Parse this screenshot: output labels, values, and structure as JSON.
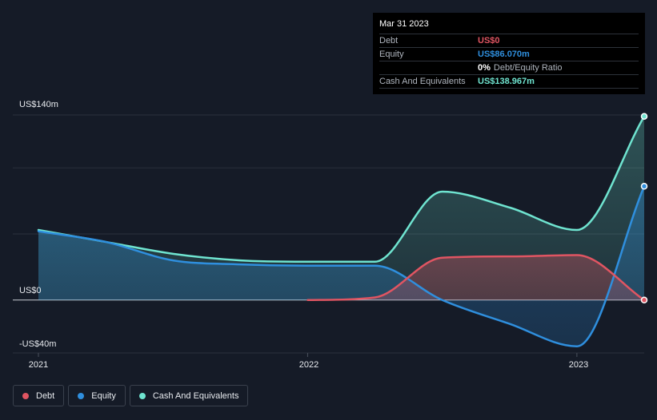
{
  "chart_data": {
    "type": "area",
    "title": "",
    "y_range": [
      -40,
      140
    ],
    "y_ticks": [
      {
        "value": 140,
        "label": "US$140m"
      },
      {
        "value": 0,
        "label": "US$0"
      },
      {
        "value": -40,
        "label": "-US$40m"
      }
    ],
    "x_range": [
      2021.0,
      2023.25
    ],
    "x_ticks": [
      {
        "value": 2021.0,
        "label": "2021"
      },
      {
        "value": 2022.0,
        "label": "2022"
      },
      {
        "value": 2023.0,
        "label": "2023"
      }
    ],
    "series": [
      {
        "name": "Debt",
        "color": "#e05562",
        "points": [
          [
            2022.0,
            0
          ],
          [
            2022.25,
            2
          ],
          [
            2022.5,
            32
          ],
          [
            2022.75,
            33
          ],
          [
            2023.0,
            34
          ],
          [
            2023.25,
            0
          ]
        ]
      },
      {
        "name": "Equity",
        "color": "#2f8fde",
        "points": [
          [
            2021.0,
            52
          ],
          [
            2021.25,
            44
          ],
          [
            2021.5,
            30
          ],
          [
            2021.75,
            27
          ],
          [
            2022.0,
            26
          ],
          [
            2022.25,
            26
          ],
          [
            2022.5,
            0
          ],
          [
            2022.75,
            -18
          ],
          [
            2023.0,
            -35
          ],
          [
            2023.25,
            86.07
          ]
        ]
      },
      {
        "name": "Cash And Equivalents",
        "color": "#6fe4d0",
        "points": [
          [
            2021.0,
            53
          ],
          [
            2021.25,
            44
          ],
          [
            2021.5,
            35
          ],
          [
            2021.75,
            30
          ],
          [
            2022.0,
            29
          ],
          [
            2022.25,
            29
          ],
          [
            2022.5,
            82
          ],
          [
            2022.75,
            70
          ],
          [
            2023.0,
            53
          ],
          [
            2023.25,
            138.967
          ]
        ]
      }
    ]
  },
  "tooltip": {
    "date": "Mar 31 2023",
    "rows": [
      {
        "label": "Debt",
        "value": "US$0",
        "color": "#e05562"
      },
      {
        "label": "Equity",
        "value": "US$86.070m",
        "color": "#2f8fde"
      },
      {
        "label": "",
        "ratio_value": "0%",
        "ratio_label": "Debt/Equity Ratio"
      },
      {
        "label": "Cash And Equivalents",
        "value": "US$138.967m",
        "color": "#6fe4d0"
      }
    ]
  },
  "legend": [
    {
      "label": "Debt",
      "color": "#e05562"
    },
    {
      "label": "Equity",
      "color": "#2f8fde"
    },
    {
      "label": "Cash And Equivalents",
      "color": "#6fe4d0"
    }
  ]
}
